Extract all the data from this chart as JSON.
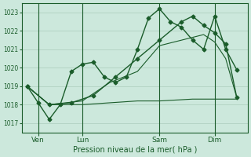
{
  "xlabel": "Pression niveau de la mer( hPa )",
  "ylim": [
    1016.5,
    1023.5
  ],
  "yticks": [
    1017,
    1018,
    1019,
    1020,
    1021,
    1022,
    1023
  ],
  "xtick_labels": [
    "Ven",
    "Lun",
    "Sam",
    "Dim"
  ],
  "xtick_positions": [
    2,
    10,
    24,
    34
  ],
  "vlines": [
    2,
    10,
    24,
    34
  ],
  "bg_color": "#cce8dc",
  "grid_color": "#aaccbb",
  "line_color": "#1a5c2a",
  "line1_x": [
    0,
    2,
    4,
    6,
    8,
    10,
    12,
    14,
    16,
    18,
    20,
    22,
    24,
    26,
    28,
    30,
    32,
    34,
    36,
    38
  ],
  "line1_y": [
    1019.0,
    1018.1,
    1017.2,
    1018.0,
    1019.8,
    1020.2,
    1020.3,
    1019.5,
    1019.2,
    1019.5,
    1021.0,
    1022.7,
    1023.2,
    1022.5,
    1022.2,
    1021.5,
    1021.0,
    1022.8,
    1021.0,
    1019.9
  ],
  "line2_x": [
    0,
    4,
    10,
    20,
    24,
    30,
    34,
    38
  ],
  "line2_y": [
    1019.0,
    1018.0,
    1018.0,
    1018.2,
    1018.2,
    1018.3,
    1018.3,
    1018.3
  ],
  "line3_x": [
    0,
    4,
    10,
    15,
    20,
    24,
    28,
    32,
    34,
    36,
    38
  ],
  "line3_y": [
    1019.0,
    1018.0,
    1018.2,
    1019.2,
    1019.8,
    1021.2,
    1021.5,
    1021.8,
    1021.4,
    1020.5,
    1018.4
  ],
  "line4_x": [
    0,
    4,
    8,
    12,
    16,
    20,
    24,
    28,
    30,
    32,
    34,
    36,
    38
  ],
  "line4_y": [
    1019.0,
    1018.0,
    1018.1,
    1018.5,
    1019.5,
    1020.5,
    1021.5,
    1022.5,
    1022.8,
    1022.3,
    1021.9,
    1021.3,
    1018.4
  ],
  "xlim": [
    -1,
    40
  ]
}
